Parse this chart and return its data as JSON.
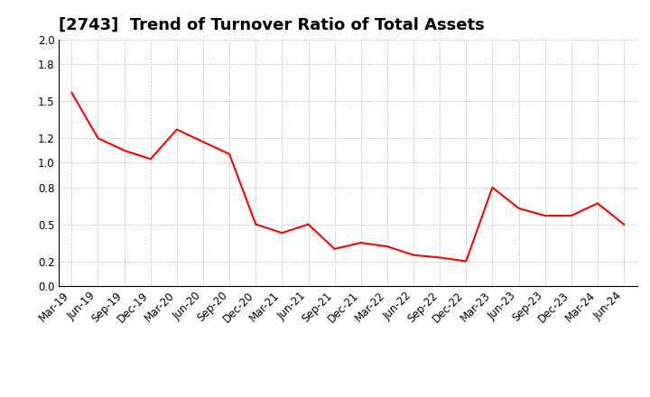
{
  "title": "[2743]  Trend of Turnover Ratio of Total Assets",
  "x_labels": [
    "Mar-19",
    "Jun-19",
    "Sep-19",
    "Dec-19",
    "Mar-20",
    "Jun-20",
    "Sep-20",
    "Dec-20",
    "Mar-21",
    "Jun-21",
    "Sep-21",
    "Dec-21",
    "Mar-22",
    "Jun-22",
    "Sep-22",
    "Dec-22",
    "Mar-23",
    "Jun-23",
    "Sep-23",
    "Dec-23",
    "Mar-24",
    "Jun-24"
  ],
  "y_values": [
    1.57,
    1.2,
    1.1,
    1.03,
    1.27,
    1.17,
    1.07,
    0.5,
    0.43,
    0.5,
    0.3,
    0.35,
    0.32,
    0.25,
    0.23,
    0.2,
    0.8,
    0.63,
    0.57,
    0.57,
    0.67,
    0.5
  ],
  "line_color": "#FF0000",
  "line_width": 1.5,
  "ylim": [
    0.0,
    2.0
  ],
  "yticks": [
    0.0,
    0.2,
    0.5,
    0.8,
    1.0,
    1.2,
    1.5,
    1.8,
    2.0
  ],
  "background_color": "#FFFFFF",
  "grid_color": "#AAAAAA",
  "title_fontsize": 13,
  "tick_fontsize": 8.5
}
